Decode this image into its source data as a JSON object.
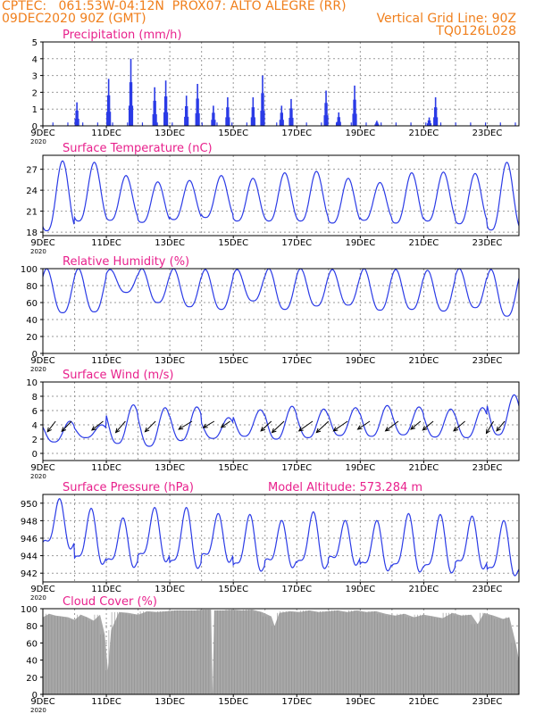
{
  "header": {
    "left_line1": "CPTEC:   061:53W-04:12N  PROX07: ALTO ALEGRE (RR)",
    "left_line2": "09DEC2020 90Z (GMT)",
    "right_line1": "Vertical Grid Line: 90Z",
    "right_line2": "TQ0126L028",
    "model_altitude": "Model Altitude: 573.284 m"
  },
  "colors": {
    "header": "#f07f1c",
    "panel_title": "#e8208c",
    "series_line": "#2b3be6",
    "precip_bars": "#2b3be6",
    "cloud_fill": "#a8a8a8",
    "wind_arrows": "#000000",
    "grid": "#9a9a9a"
  },
  "chart_data": [
    {
      "type": "bar",
      "title": "Precipitation (mm/h)",
      "ylim": [
        0,
        5
      ],
      "yticks": [
        0,
        1,
        2,
        3,
        4,
        5
      ],
      "xlim": [
        9,
        24
      ],
      "xtick_labels": [
        "9DEC",
        "11DEC",
        "13DEC",
        "15DEC",
        "17DEC",
        "19DEC",
        "21DEC",
        "23DEC"
      ],
      "bursts": [
        {
          "day": 10.05,
          "peak": 1.4
        },
        {
          "day": 11.05,
          "peak": 2.8
        },
        {
          "day": 11.75,
          "peak": 4.0
        },
        {
          "day": 12.5,
          "peak": 2.3
        },
        {
          "day": 12.85,
          "peak": 2.7
        },
        {
          "day": 13.5,
          "peak": 1.8
        },
        {
          "day": 13.85,
          "peak": 2.5
        },
        {
          "day": 14.35,
          "peak": 1.2
        },
        {
          "day": 14.8,
          "peak": 1.7
        },
        {
          "day": 15.6,
          "peak": 1.7
        },
        {
          "day": 15.9,
          "peak": 3.0
        },
        {
          "day": 16.5,
          "peak": 1.2
        },
        {
          "day": 16.8,
          "peak": 1.6
        },
        {
          "day": 17.9,
          "peak": 2.1
        },
        {
          "day": 18.3,
          "peak": 0.8
        },
        {
          "day": 18.8,
          "peak": 2.4
        },
        {
          "day": 19.5,
          "peak": 0.3
        },
        {
          "day": 21.15,
          "peak": 0.5
        },
        {
          "day": 21.35,
          "peak": 1.7
        }
      ]
    },
    {
      "type": "line",
      "title": "Surface Temperature (nC)",
      "ylim": [
        17.5,
        29
      ],
      "yticks": [
        18,
        21,
        24,
        27
      ],
      "xlim": [
        9,
        24
      ],
      "xtick_labels": [
        "9DEC",
        "11DEC",
        "13DEC",
        "15DEC",
        "17DEC",
        "19DEC",
        "21DEC",
        "23DEC"
      ],
      "series": [
        {
          "cycle_peaks": [
            28.2,
            28.0,
            26.1,
            25.2,
            25.4,
            26.1,
            25.7,
            26.5,
            26.7,
            25.7,
            25.1,
            26.5,
            26.6,
            26.4,
            28.0
          ],
          "cycle_troughs": [
            18.2,
            19.6,
            19.7,
            19.4,
            19.8,
            20.1,
            19.6,
            19.6,
            19.6,
            19.3,
            19.7,
            19.3,
            19.6,
            19.2,
            18.3
          ]
        }
      ]
    },
    {
      "type": "line",
      "title": "Relative Humidity (%)",
      "ylim": [
        0,
        100
      ],
      "yticks": [
        0,
        20,
        40,
        60,
        80,
        100
      ],
      "xlim": [
        9,
        24
      ],
      "xtick_labels": [
        "9DEC",
        "11DEC",
        "13DEC",
        "15DEC",
        "17DEC",
        "19DEC",
        "21DEC",
        "23DEC"
      ],
      "series": [
        {
          "cycle_peaks": [
            100,
            100,
            99,
            100,
            100,
            99,
            99,
            100,
            100,
            99,
            100,
            99,
            98,
            100,
            99
          ],
          "cycle_troughs": [
            48,
            49,
            72,
            60,
            55,
            52,
            62,
            52,
            56,
            57,
            51,
            52,
            50,
            54,
            44
          ]
        }
      ]
    },
    {
      "type": "line",
      "title": "Surface Wind (m/s)",
      "ylim": [
        -1,
        10
      ],
      "yticks": [
        0,
        2,
        4,
        6,
        8,
        10
      ],
      "xlim": [
        9,
        24
      ],
      "xtick_labels": [
        "9DEC",
        "11DEC",
        "13DEC",
        "15DEC",
        "17DEC",
        "19DEC",
        "21DEC",
        "23DEC"
      ],
      "series": [
        {
          "cycle_peaks": [
            4.5,
            4.0,
            6.8,
            6.4,
            6.5,
            5.0,
            6.1,
            6.6,
            6.2,
            6.4,
            6.7,
            6.5,
            6.2,
            6.4,
            8.2
          ],
          "cycle_troughs": [
            1.6,
            2.2,
            1.4,
            1.0,
            1.8,
            2.1,
            2.4,
            2.0,
            2.2,
            2.5,
            2.4,
            2.6,
            2.3,
            2.2,
            2.6
          ]
        }
      ],
      "arrows_m_per_s": [
        {
          "day": 9.4,
          "u": 2.0,
          "v": 2.6
        },
        {
          "day": 9.9,
          "u": 2.4,
          "v": 2.5
        },
        {
          "day": 10.9,
          "u": 2.8,
          "v": 2.2
        },
        {
          "day": 11.6,
          "u": 2.4,
          "v": 2.8
        },
        {
          "day": 12.55,
          "u": 2.6,
          "v": 2.6
        },
        {
          "day": 13.7,
          "u": 3.3,
          "v": 2.0
        },
        {
          "day": 14.4,
          "u": 2.7,
          "v": 1.6
        },
        {
          "day": 14.9,
          "u": 2.2,
          "v": 1.5
        },
        {
          "day": 16.2,
          "u": 2.6,
          "v": 2.4
        },
        {
          "day": 16.6,
          "u": 3.0,
          "v": 2.8
        },
        {
          "day": 17.5,
          "u": 3.4,
          "v": 2.4
        },
        {
          "day": 18.0,
          "u": 3.0,
          "v": 2.8
        },
        {
          "day": 18.6,
          "u": 3.5,
          "v": 2.4
        },
        {
          "day": 19.3,
          "u": 3.0,
          "v": 2.0
        },
        {
          "day": 20.2,
          "u": 3.2,
          "v": 2.4
        },
        {
          "day": 20.9,
          "u": 2.4,
          "v": 2.0
        },
        {
          "day": 21.3,
          "u": 2.6,
          "v": 2.2
        },
        {
          "day": 22.3,
          "u": 2.8,
          "v": 2.4
        },
        {
          "day": 23.2,
          "u": 1.8,
          "v": 3.0
        },
        {
          "day": 23.55,
          "u": 2.0,
          "v": 2.4
        }
      ]
    },
    {
      "type": "line",
      "title": "Surface Pressure (hPa)",
      "ylim": [
        941,
        951
      ],
      "yticks": [
        942,
        944,
        946,
        948,
        950
      ],
      "xlim": [
        9,
        24
      ],
      "xtick_labels": [
        "9DEC",
        "11DEC",
        "13DEC",
        "15DEC",
        "17DEC",
        "19DEC",
        "21DEC",
        "23DEC"
      ],
      "series": [
        {
          "cycle_peaks": [
            949.8,
            948.7,
            947.6,
            948.8,
            948.8,
            948.1,
            948.0,
            947.3,
            948.3,
            947.3,
            947.3,
            948.1,
            948.0,
            947.8,
            947.3
          ],
          "cycle_troughs": [
            944.9,
            943.1,
            942.8,
            943.4,
            942.6,
            943.4,
            942.3,
            942.8,
            942.6,
            943.1,
            942.4,
            942.2,
            942.1,
            942.6,
            941.8
          ]
        }
      ]
    },
    {
      "type": "area",
      "title": "Cloud Cover (%)",
      "ylim": [
        0,
        100
      ],
      "yticks": [
        0,
        20,
        40,
        60,
        80,
        100
      ],
      "xlim": [
        9,
        24
      ],
      "xtick_labels": [
        "9DEC",
        "11DEC",
        "13DEC",
        "15DEC",
        "17DEC",
        "19DEC",
        "21DEC",
        "23DEC"
      ],
      "series": [
        {
          "points": [
            [
              9.0,
              90
            ],
            [
              9.2,
              94
            ],
            [
              9.4,
              92
            ],
            [
              9.6,
              91
            ],
            [
              9.8,
              90
            ],
            [
              10.0,
              87
            ],
            [
              10.2,
              93
            ],
            [
              10.4,
              90
            ],
            [
              10.6,
              86
            ],
            [
              10.8,
              93
            ],
            [
              10.95,
              70
            ],
            [
              11.05,
              28
            ],
            [
              11.15,
              75
            ],
            [
              11.4,
              96
            ],
            [
              11.7,
              95
            ],
            [
              12.0,
              93
            ],
            [
              12.3,
              97
            ],
            [
              12.6,
              96
            ],
            [
              12.9,
              97
            ],
            [
              13.2,
              98
            ],
            [
              13.5,
              98
            ],
            [
              13.8,
              98
            ],
            [
              14.1,
              99
            ],
            [
              14.3,
              99
            ],
            [
              14.35,
              2
            ],
            [
              14.4,
              98
            ],
            [
              14.7,
              98
            ],
            [
              15.0,
              99
            ],
            [
              15.3,
              98
            ],
            [
              15.6,
              99
            ],
            [
              15.9,
              96
            ],
            [
              16.2,
              91
            ],
            [
              16.3,
              80
            ],
            [
              16.45,
              95
            ],
            [
              16.8,
              97
            ],
            [
              17.1,
              96
            ],
            [
              17.4,
              98
            ],
            [
              17.7,
              96
            ],
            [
              18.0,
              97
            ],
            [
              18.3,
              98
            ],
            [
              18.6,
              96
            ],
            [
              18.9,
              98
            ],
            [
              19.2,
              96
            ],
            [
              19.5,
              97
            ],
            [
              19.8,
              94
            ],
            [
              20.1,
              92
            ],
            [
              20.4,
              94
            ],
            [
              20.7,
              90
            ],
            [
              21.0,
              93
            ],
            [
              21.3,
              91
            ],
            [
              21.6,
              89
            ],
            [
              21.9,
              95
            ],
            [
              22.2,
              92
            ],
            [
              22.5,
              93
            ],
            [
              22.7,
              82
            ],
            [
              22.9,
              95
            ],
            [
              23.2,
              92
            ],
            [
              23.5,
              88
            ],
            [
              23.7,
              90
            ],
            [
              23.9,
              60
            ],
            [
              24.0,
              40
            ]
          ]
        }
      ]
    }
  ]
}
